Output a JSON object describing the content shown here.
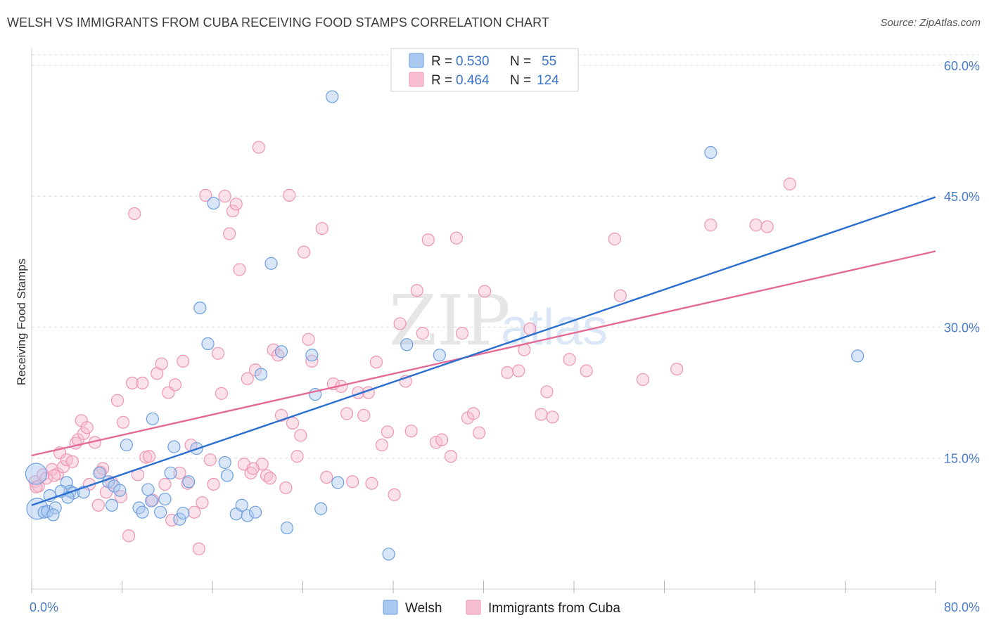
{
  "title": "WELSH VS IMMIGRANTS FROM CUBA RECEIVING FOOD STAMPS CORRELATION CHART",
  "source": "Source: ZipAtlas.com",
  "watermark": {
    "zip": "ZIP",
    "atlas": "atlas"
  },
  "legend": {
    "r_label": "R =",
    "n_label": "N =",
    "welsh": {
      "r": "0.530",
      "n": "55"
    },
    "cuba": {
      "r": "0.464",
      "n": "124"
    }
  },
  "bottom_legend": [
    "Welsh",
    "Immigrants from Cuba"
  ],
  "colors": {
    "welsh_fill": "#a9c8ef",
    "welsh_stroke": "#6d9fe0",
    "welsh_line": "#2a6fd0",
    "cuba_fill": "#f7bdd0",
    "cuba_stroke": "#ee95b3",
    "cuba_line": "#e46a95",
    "tick_text": "#4a7cc9",
    "grid": "#dddddd"
  },
  "chart_data": {
    "type": "scatter",
    "xlabel": "",
    "ylabel": "Receiving Food Stamps",
    "xlim": [
      0,
      80
    ],
    "ylim": [
      0,
      62
    ],
    "x_tick_labels": [
      "0.0%",
      "80.0%"
    ],
    "y_ticks": [
      15,
      30,
      45,
      60
    ],
    "y_tick_labels": [
      "15.0%",
      "30.0%",
      "45.0%",
      "60.0%"
    ],
    "grid": "horizontal dashed",
    "legend_position": "top-center",
    "series": [
      {
        "name": "Welsh",
        "r": 0.53,
        "n": 55,
        "trend": {
          "x": [
            0,
            80
          ],
          "y": [
            9.6,
            44.9
          ]
        },
        "points": [
          [
            0.5,
            9.2
          ],
          [
            1.1,
            8.8
          ],
          [
            1.4,
            8.9
          ],
          [
            2.1,
            9.3
          ],
          [
            1.9,
            8.5
          ],
          [
            3.1,
            12.2
          ],
          [
            3.4,
            11.2
          ],
          [
            3.7,
            11.0
          ],
          [
            3.2,
            10.5
          ],
          [
            2.6,
            11.2
          ],
          [
            6.0,
            13.3
          ],
          [
            6.8,
            12.3
          ],
          [
            7.3,
            11.8
          ],
          [
            7.8,
            11.3
          ],
          [
            8.4,
            16.5
          ],
          [
            9.5,
            9.3
          ],
          [
            9.8,
            8.8
          ],
          [
            10.3,
            11.4
          ],
          [
            10.6,
            10.1
          ],
          [
            10.7,
            19.5
          ],
          [
            11.4,
            8.8
          ],
          [
            11.8,
            10.3
          ],
          [
            12.3,
            13.3
          ],
          [
            12.6,
            16.3
          ],
          [
            13.1,
            8.0
          ],
          [
            13.4,
            8.7
          ],
          [
            13.9,
            12.3
          ],
          [
            14.6,
            16.1
          ],
          [
            14.9,
            32.2
          ],
          [
            15.6,
            28.1
          ],
          [
            17.1,
            14.5
          ],
          [
            17.3,
            13.0
          ],
          [
            18.1,
            8.6
          ],
          [
            18.6,
            9.6
          ],
          [
            19.1,
            8.4
          ],
          [
            19.8,
            8.8
          ],
          [
            20.3,
            24.6
          ],
          [
            21.2,
            37.3
          ],
          [
            22.1,
            27.2
          ],
          [
            22.6,
            7.0
          ],
          [
            24.8,
            26.8
          ],
          [
            25.1,
            22.3
          ],
          [
            25.6,
            9.2
          ],
          [
            26.6,
            56.4
          ],
          [
            27.1,
            12.2
          ],
          [
            31.6,
            4.0
          ],
          [
            33.2,
            28.0
          ],
          [
            36.1,
            26.8
          ],
          [
            60.1,
            50.0
          ],
          [
            73.1,
            26.7
          ],
          [
            0.4,
            13.2
          ],
          [
            1.6,
            10.7
          ],
          [
            4.6,
            11.1
          ],
          [
            7.1,
            9.6
          ],
          [
            16.1,
            44.2
          ]
        ]
      },
      {
        "name": "Immigrants from Cuba",
        "r": 0.464,
        "n": 124,
        "trend": {
          "x": [
            0,
            80
          ],
          "y": [
            15.3,
            38.7
          ]
        },
        "points": [
          [
            0.3,
            12.3
          ],
          [
            0.6,
            11.8
          ],
          [
            1.0,
            13.1
          ],
          [
            1.3,
            12.7
          ],
          [
            1.8,
            13.7
          ],
          [
            2.3,
            13.2
          ],
          [
            2.5,
            15.6
          ],
          [
            2.8,
            14.0
          ],
          [
            3.1,
            14.8
          ],
          [
            3.6,
            14.6
          ],
          [
            3.9,
            16.7
          ],
          [
            4.1,
            17.1
          ],
          [
            4.4,
            19.3
          ],
          [
            4.6,
            17.8
          ],
          [
            4.9,
            18.5
          ],
          [
            5.1,
            12.0
          ],
          [
            5.6,
            16.8
          ],
          [
            5.9,
            9.6
          ],
          [
            6.1,
            13.4
          ],
          [
            6.6,
            11.1
          ],
          [
            7.1,
            12.2
          ],
          [
            7.6,
            21.6
          ],
          [
            7.9,
            10.6
          ],
          [
            8.1,
            19.1
          ],
          [
            8.6,
            6.1
          ],
          [
            8.9,
            23.6
          ],
          [
            9.1,
            43.0
          ],
          [
            9.4,
            13.1
          ],
          [
            9.8,
            23.6
          ],
          [
            10.1,
            15.1
          ],
          [
            10.4,
            15.2
          ],
          [
            10.7,
            10.2
          ],
          [
            11.1,
            24.7
          ],
          [
            11.5,
            25.8
          ],
          [
            11.8,
            12.0
          ],
          [
            12.1,
            22.5
          ],
          [
            12.4,
            7.9
          ],
          [
            12.7,
            23.4
          ],
          [
            13.1,
            13.3
          ],
          [
            13.4,
            26.1
          ],
          [
            13.8,
            12.1
          ],
          [
            14.1,
            16.5
          ],
          [
            14.4,
            8.8
          ],
          [
            14.8,
            4.6
          ],
          [
            15.1,
            9.9
          ],
          [
            15.4,
            45.1
          ],
          [
            15.8,
            14.8
          ],
          [
            16.1,
            12.0
          ],
          [
            16.5,
            27.0
          ],
          [
            16.8,
            22.4
          ],
          [
            17.1,
            45.0
          ],
          [
            17.5,
            40.7
          ],
          [
            17.8,
            43.3
          ],
          [
            18.1,
            44.1
          ],
          [
            18.4,
            36.6
          ],
          [
            18.8,
            14.3
          ],
          [
            19.1,
            24.1
          ],
          [
            19.4,
            13.3
          ],
          [
            19.8,
            25.1
          ],
          [
            20.1,
            50.6
          ],
          [
            20.4,
            14.3
          ],
          [
            20.8,
            13.0
          ],
          [
            21.1,
            12.7
          ],
          [
            21.4,
            27.4
          ],
          [
            21.8,
            26.8
          ],
          [
            22.1,
            19.9
          ],
          [
            22.5,
            11.6
          ],
          [
            22.8,
            45.1
          ],
          [
            23.1,
            19.0
          ],
          [
            23.5,
            15.2
          ],
          [
            23.8,
            17.6
          ],
          [
            24.1,
            38.6
          ],
          [
            24.5,
            28.6
          ],
          [
            24.8,
            26.1
          ],
          [
            25.7,
            41.3
          ],
          [
            26.1,
            12.8
          ],
          [
            26.7,
            23.5
          ],
          [
            27.4,
            23.2
          ],
          [
            27.9,
            20.1
          ],
          [
            28.4,
            12.3
          ],
          [
            28.9,
            22.5
          ],
          [
            29.4,
            19.9
          ],
          [
            29.8,
            22.5
          ],
          [
            30.1,
            12.1
          ],
          [
            30.5,
            26.0
          ],
          [
            31.0,
            16.5
          ],
          [
            31.5,
            18.0
          ],
          [
            32.1,
            10.8
          ],
          [
            32.6,
            30.4
          ],
          [
            33.1,
            23.8
          ],
          [
            33.6,
            18.1
          ],
          [
            34.1,
            34.2
          ],
          [
            34.6,
            29.3
          ],
          [
            35.1,
            40.0
          ],
          [
            35.8,
            16.8
          ],
          [
            36.3,
            17.1
          ],
          [
            37.1,
            15.2
          ],
          [
            37.6,
            40.2
          ],
          [
            38.1,
            29.3
          ],
          [
            38.6,
            19.6
          ],
          [
            39.1,
            20.1
          ],
          [
            39.6,
            17.9
          ],
          [
            40.1,
            34.1
          ],
          [
            42.1,
            24.8
          ],
          [
            43.1,
            25.0
          ],
          [
            43.6,
            27.4
          ],
          [
            44.1,
            29.8
          ],
          [
            45.1,
            20.0
          ],
          [
            45.6,
            22.6
          ],
          [
            46.1,
            19.7
          ],
          [
            47.6,
            26.3
          ],
          [
            49.1,
            25.0
          ],
          [
            51.6,
            40.1
          ],
          [
            52.1,
            33.6
          ],
          [
            54.1,
            24.0
          ],
          [
            57.1,
            25.2
          ],
          [
            60.1,
            41.7
          ],
          [
            64.1,
            41.7
          ],
          [
            65.1,
            41.5
          ],
          [
            67.1,
            46.4
          ],
          [
            0.4,
            11.7
          ],
          [
            2.0,
            13.0
          ],
          [
            6.3,
            13.8
          ],
          [
            19.6,
            13.8
          ]
        ]
      }
    ]
  }
}
